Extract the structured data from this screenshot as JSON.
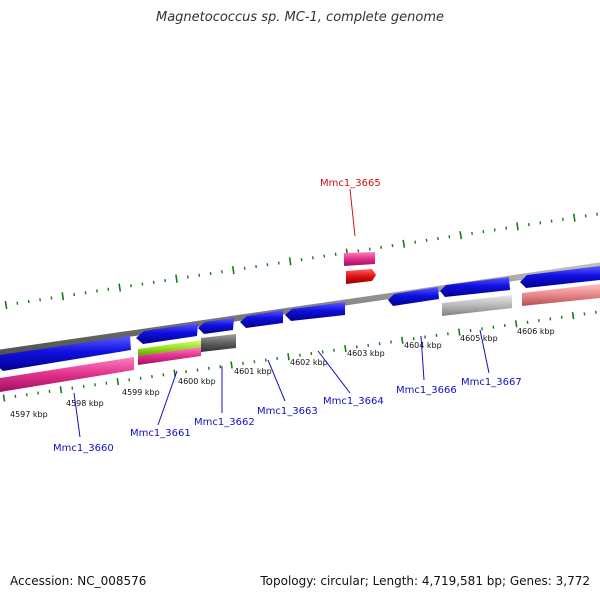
{
  "title": "Magnetococcus sp. MC-1, complete genome",
  "footer": {
    "accession": "Accession: NC_008576",
    "stats": "Topology: circular; Length: 4,719,581 bp; Genes: 3,772"
  },
  "colors": {
    "backbone": "#8a8a8a",
    "cds_blue": "#1010e0",
    "highlight_red": "#e01010",
    "rna_pink": "#e0308a",
    "pseudo_grey": "#b0b0b0",
    "dark_grey": "#606060",
    "lime": "#9adf20",
    "salmon": "#e88888",
    "tick_green": "#1a7a1a",
    "label_blue": "#1010c0",
    "label_red": "#d01010"
  },
  "scale_labels": [
    "4597 kbp",
    "4598 kbp",
    "4599 kbp",
    "4600 kbp",
    "4601 kbp",
    "4602 kbp",
    "4603 kbp",
    "4604 kbp",
    "4605 kbp",
    "4606 kbp"
  ],
  "gene_labels": [
    {
      "text": "Mmc1_3665",
      "color": "red"
    },
    {
      "text": "Mmc1_3660",
      "color": "blue"
    },
    {
      "text": "Mmc1_3661",
      "color": "blue"
    },
    {
      "text": "Mmc1_3662",
      "color": "blue"
    },
    {
      "text": "Mmc1_3663",
      "color": "blue"
    },
    {
      "text": "Mmc1_3664",
      "color": "blue"
    },
    {
      "text": "Mmc1_3666",
      "color": "blue"
    },
    {
      "text": "Mmc1_3667",
      "color": "blue"
    }
  ]
}
